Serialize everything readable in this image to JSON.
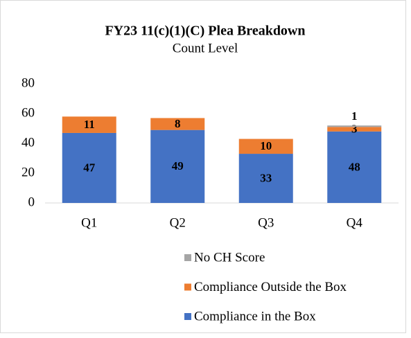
{
  "chart_data": {
    "type": "stacked_bar",
    "title": "FY23 11(c)(1)(C) Plea Breakdown",
    "subtitle": "Count Level",
    "categories": [
      "Q1",
      "Q2",
      "Q3",
      "Q4"
    ],
    "series": [
      {
        "name": "Compliance in the Box",
        "color": "#4472c4",
        "values": [
          47,
          49,
          33,
          48
        ]
      },
      {
        "name": "Compliance Outside the Box",
        "color": "#ed7d31",
        "values": [
          11,
          8,
          10,
          3
        ]
      },
      {
        "name": "No CH Score",
        "color": "#a5a5a5",
        "values": [
          0,
          0,
          0,
          1
        ]
      }
    ],
    "ylim": [
      0,
      80
    ],
    "yticks": [
      0,
      20,
      40,
      60,
      80
    ],
    "grid": false,
    "legend": "bottom"
  }
}
